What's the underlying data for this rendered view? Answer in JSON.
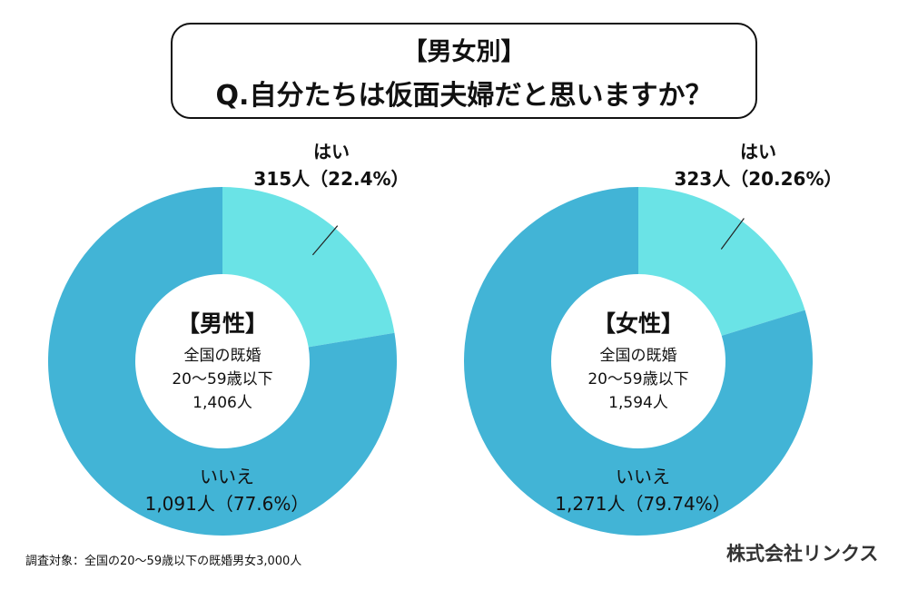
{
  "title": {
    "line1": "【男女別】",
    "line2": "Q.自分たちは仮面夫婦だと思いますか？"
  },
  "colors": {
    "yes": "#6AE3E6",
    "no": "#42B4D6"
  },
  "chart_data": [
    {
      "type": "pie",
      "donut": true,
      "center_title": "【男性】",
      "center_lines": [
        "全国の既婚",
        "20〜59歳以下",
        "1,406人"
      ],
      "slices": [
        {
          "label": "はい",
          "count": 315,
          "count_text": "315人（22.4%）",
          "percent": 22.4
        },
        {
          "label": "いいえ",
          "count": 1091,
          "count_text": "1,091人（77.6%）",
          "percent": 77.6
        }
      ]
    },
    {
      "type": "pie",
      "donut": true,
      "center_title": "【女性】",
      "center_lines": [
        "全国の既婚",
        "20〜59歳以下",
        "1,594人"
      ],
      "slices": [
        {
          "label": "はい",
          "count": 323,
          "count_text": "323人（20.26%）",
          "percent": 20.26
        },
        {
          "label": "いいえ",
          "count": 1271,
          "count_text": "1,271人（79.74%）",
          "percent": 79.74
        }
      ]
    }
  ],
  "footer": {
    "note": "調査対象：全国の20〜59歳以下の既婚男女3,000人",
    "company": "株式会社リンクス"
  }
}
